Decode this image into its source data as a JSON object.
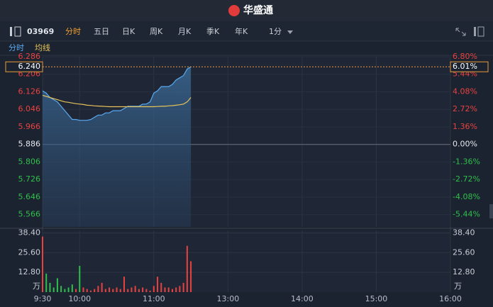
{
  "header": {
    "brand": "华盛通"
  },
  "toolbar": {
    "code": "03969",
    "tabs": [
      "分时",
      "五日",
      "日K",
      "周K",
      "月K",
      "季K",
      "年K"
    ],
    "interval": "1分"
  },
  "quote": {
    "price": {
      "value": 6.24,
      "label": "6.240"
    },
    "change": {
      "value": 6.01,
      "label": "6.01%"
    }
  },
  "chart_data": [
    {
      "type": "line",
      "x": [
        0,
        3,
        6,
        9,
        12,
        15,
        18,
        21,
        24,
        27,
        30,
        33,
        36,
        39,
        42,
        45,
        48,
        51,
        54,
        57,
        60,
        63,
        66,
        69,
        72,
        75,
        78,
        81,
        84,
        87,
        90,
        93,
        96,
        99,
        102,
        105,
        108,
        111,
        114,
        117,
        120
      ],
      "series": [
        {
          "name": "分时",
          "color": "#5aa9f0",
          "values": [
            6.13,
            6.12,
            6.1,
            6.09,
            6.08,
            6.06,
            6.04,
            6.02,
            6.0,
            6.0,
            5.996,
            5.996,
            5.996,
            6.0,
            6.01,
            6.02,
            6.02,
            6.03,
            6.03,
            6.04,
            6.04,
            6.04,
            6.05,
            6.06,
            6.06,
            6.06,
            6.06,
            6.07,
            6.07,
            6.08,
            6.12,
            6.13,
            6.15,
            6.15,
            6.15,
            6.16,
            6.18,
            6.19,
            6.2,
            6.23,
            6.24
          ]
        },
        {
          "name": "均线",
          "color": "#e6c25a",
          "values": [
            6.11,
            6.105,
            6.1,
            6.095,
            6.09,
            6.085,
            6.08,
            6.078,
            6.075,
            6.072,
            6.07,
            6.068,
            6.065,
            6.064,
            6.062,
            6.061,
            6.06,
            6.059,
            6.058,
            6.058,
            6.058,
            6.058,
            6.058,
            6.058,
            6.058,
            6.058,
            6.058,
            6.058,
            6.058,
            6.058,
            6.058,
            6.059,
            6.06,
            6.06,
            6.062,
            6.063,
            6.065,
            6.067,
            6.07,
            6.08,
            6.1
          ]
        }
      ],
      "xlim": [
        0,
        330
      ],
      "ylim": [
        5.51,
        6.286
      ],
      "yticks": [
        5.566,
        5.646,
        5.726,
        5.806,
        5.886,
        5.966,
        6.046,
        6.126,
        6.206,
        6.286
      ],
      "y2lim": [
        -6.39,
        6.8
      ],
      "y2ticks": [
        {
          "value": -5.44,
          "label": "-5.44%"
        },
        {
          "value": -4.08,
          "label": "-4.08%"
        },
        {
          "value": -2.72,
          "label": "-2.72%"
        },
        {
          "value": -1.36,
          "label": "-1.36%"
        },
        {
          "value": 0,
          "label": "0.00%"
        },
        {
          "value": 1.36,
          "label": "1.36%"
        },
        {
          "value": 2.72,
          "label": "2.72%"
        },
        {
          "value": 4.08,
          "label": "4.08%"
        },
        {
          "value": 5.44,
          "label": "5.44%"
        },
        {
          "value": 6.8,
          "label": "6.80%"
        }
      ],
      "up_color": "#e8423f",
      "down_color": "#2fbf4a",
      "grid": true
    },
    {
      "type": "bar",
      "x": [
        0,
        3,
        6,
        9,
        12,
        15,
        18,
        21,
        24,
        27,
        30,
        33,
        36,
        39,
        42,
        45,
        48,
        51,
        54,
        57,
        60,
        63,
        66,
        69,
        72,
        75,
        78,
        81,
        84,
        87,
        90,
        93,
        96,
        99,
        102,
        105,
        108,
        111,
        114,
        117,
        120
      ],
      "values": [
        36,
        12,
        6,
        3,
        9,
        4,
        2,
        3,
        5,
        2,
        17,
        3,
        2,
        1,
        2,
        4,
        6,
        2,
        3,
        2,
        3,
        2,
        10,
        2,
        3,
        4,
        2,
        3,
        2,
        1,
        4,
        10,
        6,
        3,
        3,
        2,
        3,
        4,
        6,
        30,
        20
      ],
      "xlim": [
        0,
        330
      ],
      "xticks": [
        {
          "value": 0,
          "label": "9:30"
        },
        {
          "value": 30,
          "label": "10:00"
        },
        {
          "value": 90,
          "label": "11:00"
        },
        {
          "value": 150,
          "label": "13:00"
        },
        {
          "value": 210,
          "label": "14:00"
        },
        {
          "value": 270,
          "label": "15:00"
        },
        {
          "value": 330,
          "label": "16:00"
        }
      ],
      "ylim": [
        0,
        40
      ],
      "yticks": [
        {
          "value": 12.8,
          "label": "12.80"
        },
        {
          "value": 25.6,
          "label": "25.60"
        },
        {
          "value": 38.4,
          "label": "38.40"
        }
      ],
      "y_unit": "万",
      "grid": true
    }
  ]
}
